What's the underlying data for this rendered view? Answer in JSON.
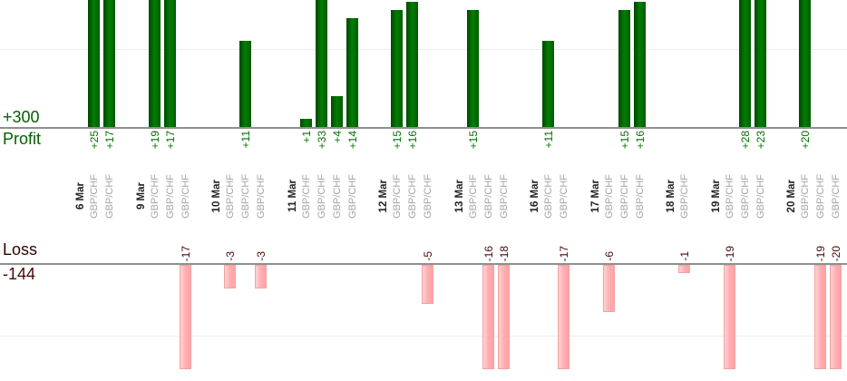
{
  "summary": {
    "profit_total": "+300",
    "profit_label": "Profit",
    "loss_label": "Loss",
    "loss_total": "-144"
  },
  "colors": {
    "profit_bar": "#027e02",
    "profit_text": "#016001",
    "loss_bar": "#ffacb0",
    "loss_text": "#4a0707",
    "axis_line": "#8f8f8f",
    "gridline": "#ededed",
    "date_label": "#222222",
    "pair_label": "#a5a5a5"
  },
  "chart_data": {
    "type": "bar",
    "subtype": "profit-loss-mirrored",
    "instrument": "GBP/CHF",
    "profit_axis": {
      "label": "Profit",
      "total": "+300"
    },
    "loss_axis": {
      "label": "Loss",
      "total": "-144"
    },
    "layout_hints": {
      "profit_bars_point_up_from_upper_baseline": true,
      "loss_bars_point_down_from_lower_baseline": true,
      "tall_bars_clipped_at_image_edges": true,
      "category_labels_rotated_90deg": true
    },
    "days": [
      {
        "date": "6 Mar",
        "trades": [
          {
            "pair": "GBP/CHF",
            "value": 25
          },
          {
            "pair": "GBP/CHF",
            "value": 17
          }
        ]
      },
      {
        "date": "9 Mar",
        "trades": [
          {
            "pair": "GBP/CHF",
            "value": 19
          },
          {
            "pair": "GBP/CHF",
            "value": 17
          },
          {
            "pair": "GBP/CHF",
            "value": -17
          }
        ]
      },
      {
        "date": "10 Mar",
        "trades": [
          {
            "pair": "GBP/CHF",
            "value": -3
          },
          {
            "pair": "GBP/CHF",
            "value": 11
          },
          {
            "pair": "GBP/CHF",
            "value": -3
          }
        ]
      },
      {
        "date": "11 Mar",
        "trades": [
          {
            "pair": "GBP/CHF",
            "value": 1
          },
          {
            "pair": "GBP/CHF",
            "value": 33
          },
          {
            "pair": "GBP/CHF",
            "value": 4
          },
          {
            "pair": "GBP/CHF",
            "value": 14
          }
        ]
      },
      {
        "date": "12 Mar",
        "trades": [
          {
            "pair": "GBP/CHF",
            "value": 15
          },
          {
            "pair": "GBP/CHF",
            "value": 16
          },
          {
            "pair": "GBP/CHF",
            "value": -5
          }
        ]
      },
      {
        "date": "13 Mar",
        "trades": [
          {
            "pair": "GBP/CHF",
            "value": 15
          },
          {
            "pair": "GBP/CHF",
            "value": -16
          },
          {
            "pair": "GBP/CHF",
            "value": -18
          }
        ]
      },
      {
        "date": "16 Mar",
        "trades": [
          {
            "pair": "GBP/CHF",
            "value": 11
          },
          {
            "pair": "GBP/CHF",
            "value": -17
          }
        ]
      },
      {
        "date": "17 Mar",
        "trades": [
          {
            "pair": "GBP/CHF",
            "value": -6
          },
          {
            "pair": "GBP/CHF",
            "value": 15
          },
          {
            "pair": "GBP/CHF",
            "value": 16
          }
        ]
      },
      {
        "date": "18 Mar",
        "trades": [
          {
            "pair": "GBP/CHF",
            "value": -1
          }
        ]
      },
      {
        "date": "19 Mar",
        "trades": [
          {
            "pair": "GBP/CHF",
            "value": -19
          },
          {
            "pair": "GBP/CHF",
            "value": 28
          },
          {
            "pair": "GBP/CHF",
            "value": 23
          }
        ]
      },
      {
        "date": "20 Mar",
        "trades": [
          {
            "pair": "GBP/CHF",
            "value": 20
          },
          {
            "pair": "GBP/CHF",
            "value": -19
          },
          {
            "pair": "GBP/CHF",
            "value": -20
          }
        ]
      }
    ]
  }
}
